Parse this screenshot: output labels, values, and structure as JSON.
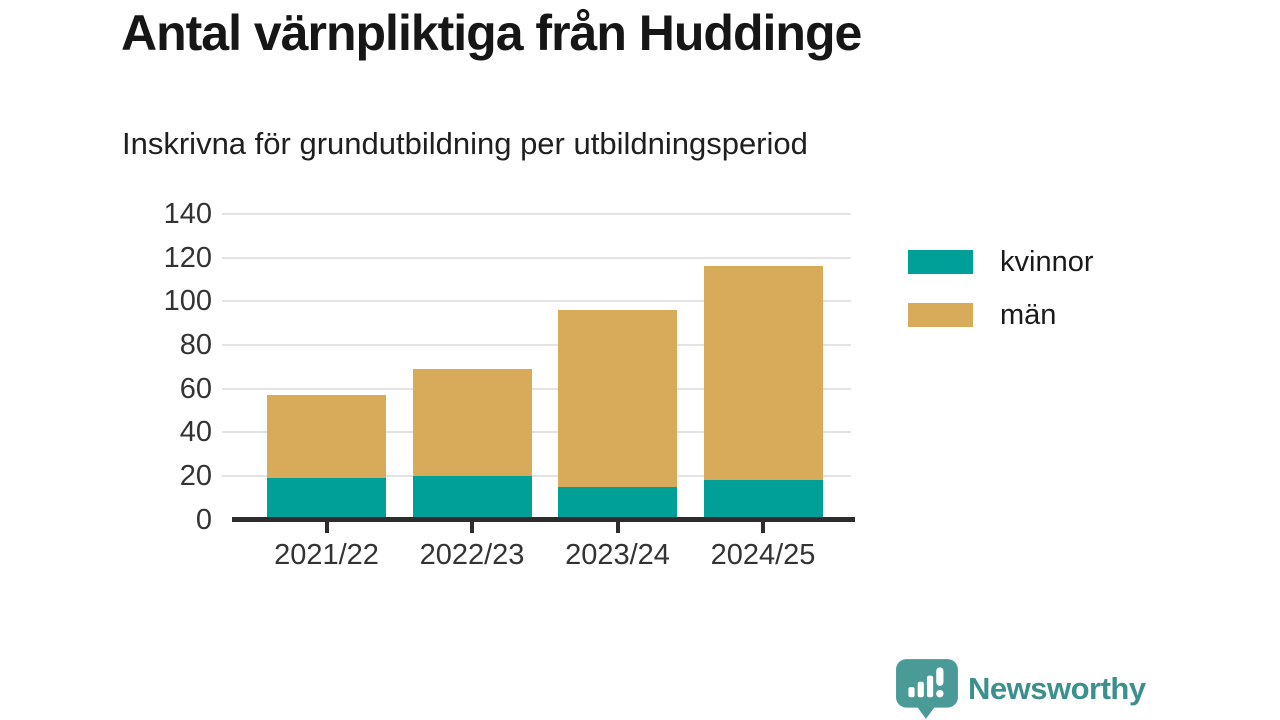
{
  "header": {
    "title": "Antal värnpliktiga från Huddinge",
    "subtitle": "Inskrivna för grundutbildning per utbildningsperiod"
  },
  "chart_data": {
    "type": "bar",
    "stacked": true,
    "title": "Antal värnpliktiga från Huddinge",
    "subtitle": "Inskrivna för grundutbildning per utbildningsperiod",
    "categories": [
      "2021/22",
      "2022/23",
      "2023/24",
      "2024/25"
    ],
    "series": [
      {
        "name": "kvinnor",
        "color": "#00a099",
        "values": [
          19,
          20,
          15,
          18
        ]
      },
      {
        "name": "män",
        "color": "#d8ab5b",
        "values": [
          38,
          49,
          81,
          98
        ]
      }
    ],
    "stack_totals": [
      57,
      69,
      96,
      116
    ],
    "xlabel": "",
    "ylabel": "",
    "ylim": [
      0,
      140
    ],
    "yticks": [
      0,
      20,
      40,
      60,
      80,
      100,
      120,
      140
    ],
    "grid": true,
    "legend_position": "right"
  },
  "branding": {
    "name": "Newsworthy",
    "text_color": "#3d8f8f",
    "icon_color": "#4a9b97",
    "icon": "speech-bubble-bar-chart"
  }
}
